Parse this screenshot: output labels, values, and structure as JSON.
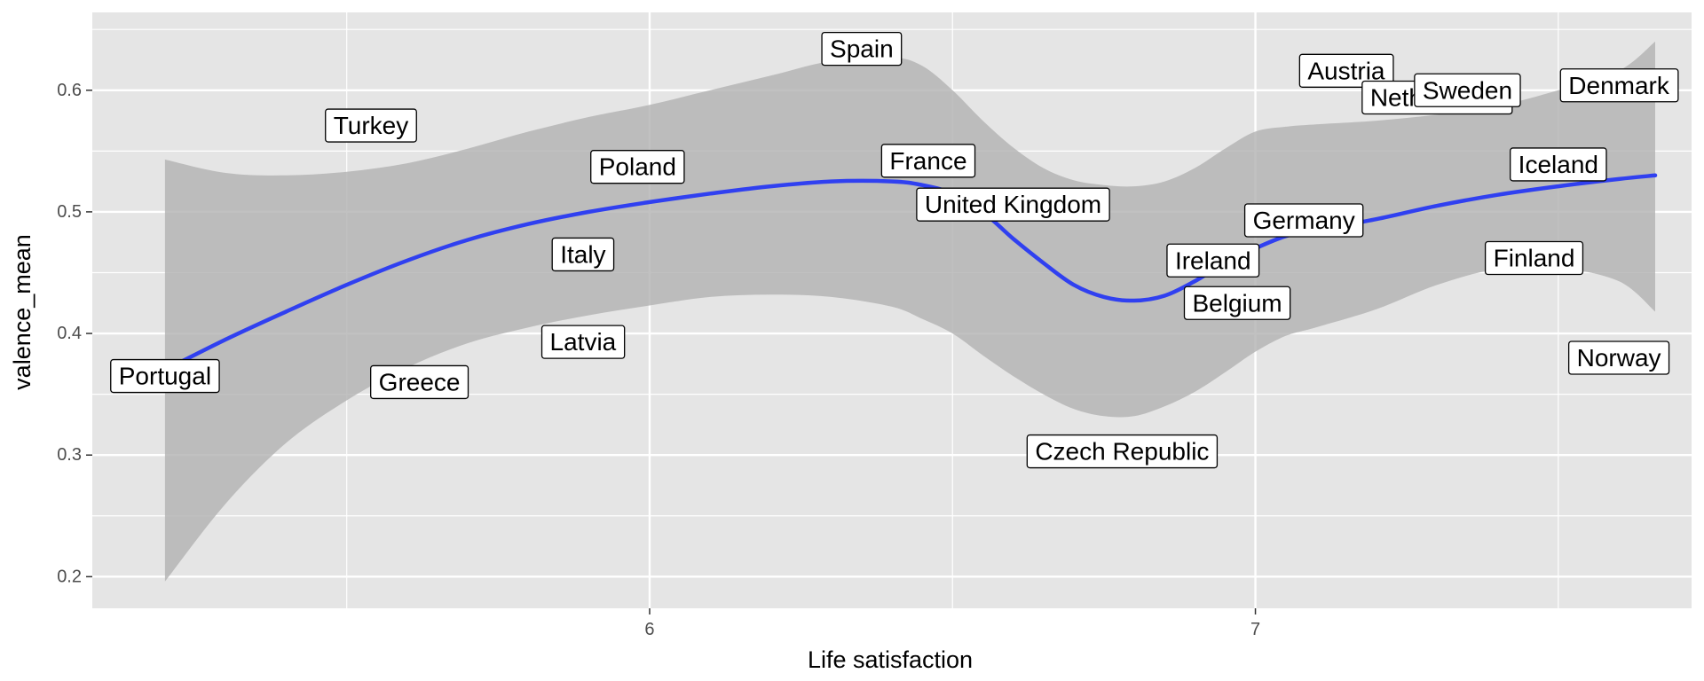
{
  "chart_data": {
    "type": "scatter",
    "title": "",
    "xlabel": "Life satisfaction",
    "ylabel": "valence_mean",
    "xlim": [
      5.08,
      7.72
    ],
    "ylim": [
      0.174,
      0.664
    ],
    "x_ticks": [
      6,
      7
    ],
    "x_minor_ticks": [
      5.5,
      6.5,
      7.5
    ],
    "y_ticks": [
      0.2,
      0.3,
      0.4,
      0.5,
      0.6
    ],
    "y_minor_ticks": [
      0.25,
      0.35,
      0.45,
      0.55,
      0.65
    ],
    "grid": true,
    "legend": "none",
    "colors": {
      "panel": "#e5e5e5",
      "grid": "#ffffff",
      "smooth_line": "#3040f0",
      "ribbon": "#b2b2b2",
      "label_fill": "#ffffff",
      "label_border": "#000000"
    },
    "points": [
      {
        "label": "Portugal",
        "x": 5.2,
        "y": 0.365
      },
      {
        "label": "Turkey",
        "x": 5.54,
        "y": 0.571
      },
      {
        "label": "Greece",
        "x": 5.62,
        "y": 0.36
      },
      {
        "label": "Latvia",
        "x": 5.89,
        "y": 0.393
      },
      {
        "label": "Italy",
        "x": 5.89,
        "y": 0.465
      },
      {
        "label": "Poland",
        "x": 5.98,
        "y": 0.537
      },
      {
        "label": "Spain",
        "x": 6.35,
        "y": 0.634
      },
      {
        "label": "France",
        "x": 6.46,
        "y": 0.542
      },
      {
        "label": "United Kingdom",
        "x": 6.6,
        "y": 0.506
      },
      {
        "label": "Czech Republic",
        "x": 6.78,
        "y": 0.303
      },
      {
        "label": "Ireland",
        "x": 6.93,
        "y": 0.46
      },
      {
        "label": "Belgium",
        "x": 6.97,
        "y": 0.425
      },
      {
        "label": "Germany",
        "x": 7.08,
        "y": 0.493
      },
      {
        "label": "Austria",
        "x": 7.15,
        "y": 0.616
      },
      {
        "label": "Netherlands",
        "x": 7.3,
        "y": 0.594
      },
      {
        "label": "Sweden",
        "x": 7.35,
        "y": 0.6
      },
      {
        "label": "Finland",
        "x": 7.46,
        "y": 0.462
      },
      {
        "label": "Iceland",
        "x": 7.5,
        "y": 0.539
      },
      {
        "label": "Denmark",
        "x": 7.6,
        "y": 0.604
      },
      {
        "label": "Norway",
        "x": 7.6,
        "y": 0.38
      }
    ],
    "smooth": {
      "method": "loess",
      "x": [
        5.2,
        5.3,
        5.4,
        5.5,
        5.6,
        5.7,
        5.8,
        5.9,
        6.0,
        6.1,
        6.2,
        6.3,
        6.4,
        6.45,
        6.5,
        6.55,
        6.6,
        6.65,
        6.7,
        6.75,
        6.8,
        6.85,
        6.9,
        6.95,
        7.0,
        7.05,
        7.1,
        7.2,
        7.3,
        7.4,
        7.5,
        7.6,
        7.66
      ],
      "y": [
        0.37,
        0.395,
        0.418,
        0.44,
        0.46,
        0.477,
        0.49,
        0.5,
        0.508,
        0.515,
        0.521,
        0.525,
        0.525,
        0.522,
        0.515,
        0.5,
        0.478,
        0.458,
        0.44,
        0.43,
        0.427,
        0.431,
        0.443,
        0.458,
        0.47,
        0.48,
        0.485,
        0.494,
        0.505,
        0.514,
        0.521,
        0.527,
        0.53
      ],
      "upper": [
        0.543,
        0.532,
        0.53,
        0.533,
        0.54,
        0.552,
        0.566,
        0.578,
        0.588,
        0.6,
        0.612,
        0.624,
        0.627,
        0.62,
        0.6,
        0.575,
        0.553,
        0.536,
        0.526,
        0.522,
        0.521,
        0.525,
        0.536,
        0.552,
        0.566,
        0.57,
        0.572,
        0.575,
        0.58,
        0.587,
        0.6,
        0.616,
        0.64
      ],
      "lower": [
        0.196,
        0.26,
        0.31,
        0.345,
        0.372,
        0.392,
        0.405,
        0.415,
        0.423,
        0.43,
        0.432,
        0.43,
        0.422,
        0.412,
        0.4,
        0.382,
        0.365,
        0.35,
        0.338,
        0.332,
        0.332,
        0.34,
        0.352,
        0.368,
        0.385,
        0.398,
        0.405,
        0.42,
        0.44,
        0.453,
        0.454,
        0.443,
        0.418
      ]
    }
  }
}
